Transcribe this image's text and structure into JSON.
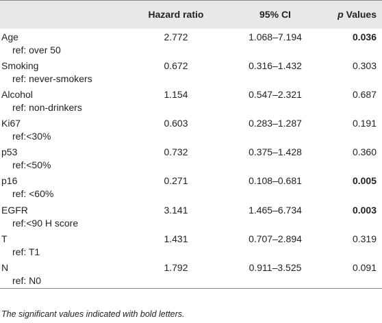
{
  "table": {
    "header": [
      {
        "text": ""
      },
      {
        "text": "Hazard ratio"
      },
      {
        "text": "95% CI"
      },
      {
        "italic": "p",
        "text": "Values"
      }
    ],
    "rows": [
      {
        "name": "Age",
        "ref": "ref: over 50",
        "hr": "2.772",
        "ci": "1.068–7.194",
        "p": "0.036",
        "bold": true
      },
      {
        "name": "Smoking",
        "ref": "ref: never-smokers",
        "hr": "0.672",
        "ci": "0.316–1.432",
        "p": "0.303",
        "bold": false
      },
      {
        "name": "Alcohol",
        "ref": "ref: non-drinkers",
        "hr": "1.154",
        "ci": "0.547–2.321",
        "p": "0.687",
        "bold": false
      },
      {
        "name": "Ki67",
        "ref": "ref:<30%",
        "hr": "0.603",
        "ci": "0.283–1.287",
        "p": "0.191",
        "bold": false
      },
      {
        "name": "p53",
        "ref": "ref:<50%",
        "hr": "0.732",
        "ci": "0.375–1.428",
        "p": "0.360",
        "bold": false
      },
      {
        "name": "p16",
        "ref": "ref: <60%",
        "hr": "0.271",
        "ci": "0.108–0.681",
        "p": "0.005",
        "bold": true
      },
      {
        "name": "EGFR",
        "ref": "ref:<90 H score",
        "hr": "3.141",
        "ci": "1.465–6.734",
        "p": "0.003",
        "bold": true
      },
      {
        "name": "T",
        "ref": "ref: T1",
        "hr": "1.431",
        "ci": "0.707–2.894",
        "p": "0.319",
        "bold": false
      },
      {
        "name": "N",
        "ref": "ref: N0",
        "hr": "1.792",
        "ci": "0.911–3.525",
        "p": "0.091",
        "bold": false
      }
    ]
  },
  "footnote": "The significant values indicated with bold letters."
}
